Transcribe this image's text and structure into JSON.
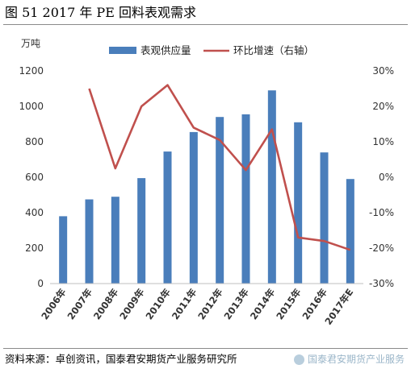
{
  "header": {
    "title": "图 51    2017 年 PE 回料表观需求"
  },
  "footer": {
    "source": "资料来源：卓创资讯，国泰君安期货产业服务研究所",
    "watermark": "国泰君安期货产业服务"
  },
  "chart_data": {
    "type": "bar+line",
    "categories": [
      "2006年",
      "2007年",
      "2008年",
      "2009年",
      "2010年",
      "2011年",
      "2012年",
      "2013年",
      "2014年",
      "2015年",
      "2016年",
      "2017年E"
    ],
    "series": [
      {
        "name": "表观供应量",
        "type": "bar",
        "axis": "left",
        "color": "#4a7ebb",
        "values": [
          380,
          475,
          490,
          595,
          745,
          855,
          940,
          955,
          1090,
          910,
          740,
          590
        ]
      },
      {
        "name": "环比增速（右轴）",
        "type": "line",
        "axis": "right",
        "color": "#c0504d",
        "values": [
          null,
          25,
          2.5,
          20,
          26,
          14,
          10.5,
          2,
          13.5,
          -17,
          -18,
          -20.5
        ]
      }
    ],
    "ylabel_left": "万吨",
    "ylim_left": [
      0,
      1200
    ],
    "yticks_left": [
      0,
      200,
      400,
      600,
      800,
      1000,
      1200
    ],
    "ylim_right": [
      -30,
      30
    ],
    "yticks_right": [
      -30,
      -20,
      -10,
      0,
      10,
      20,
      30
    ],
    "right_tick_format": "percent",
    "grid": false,
    "legend": "top-center"
  }
}
